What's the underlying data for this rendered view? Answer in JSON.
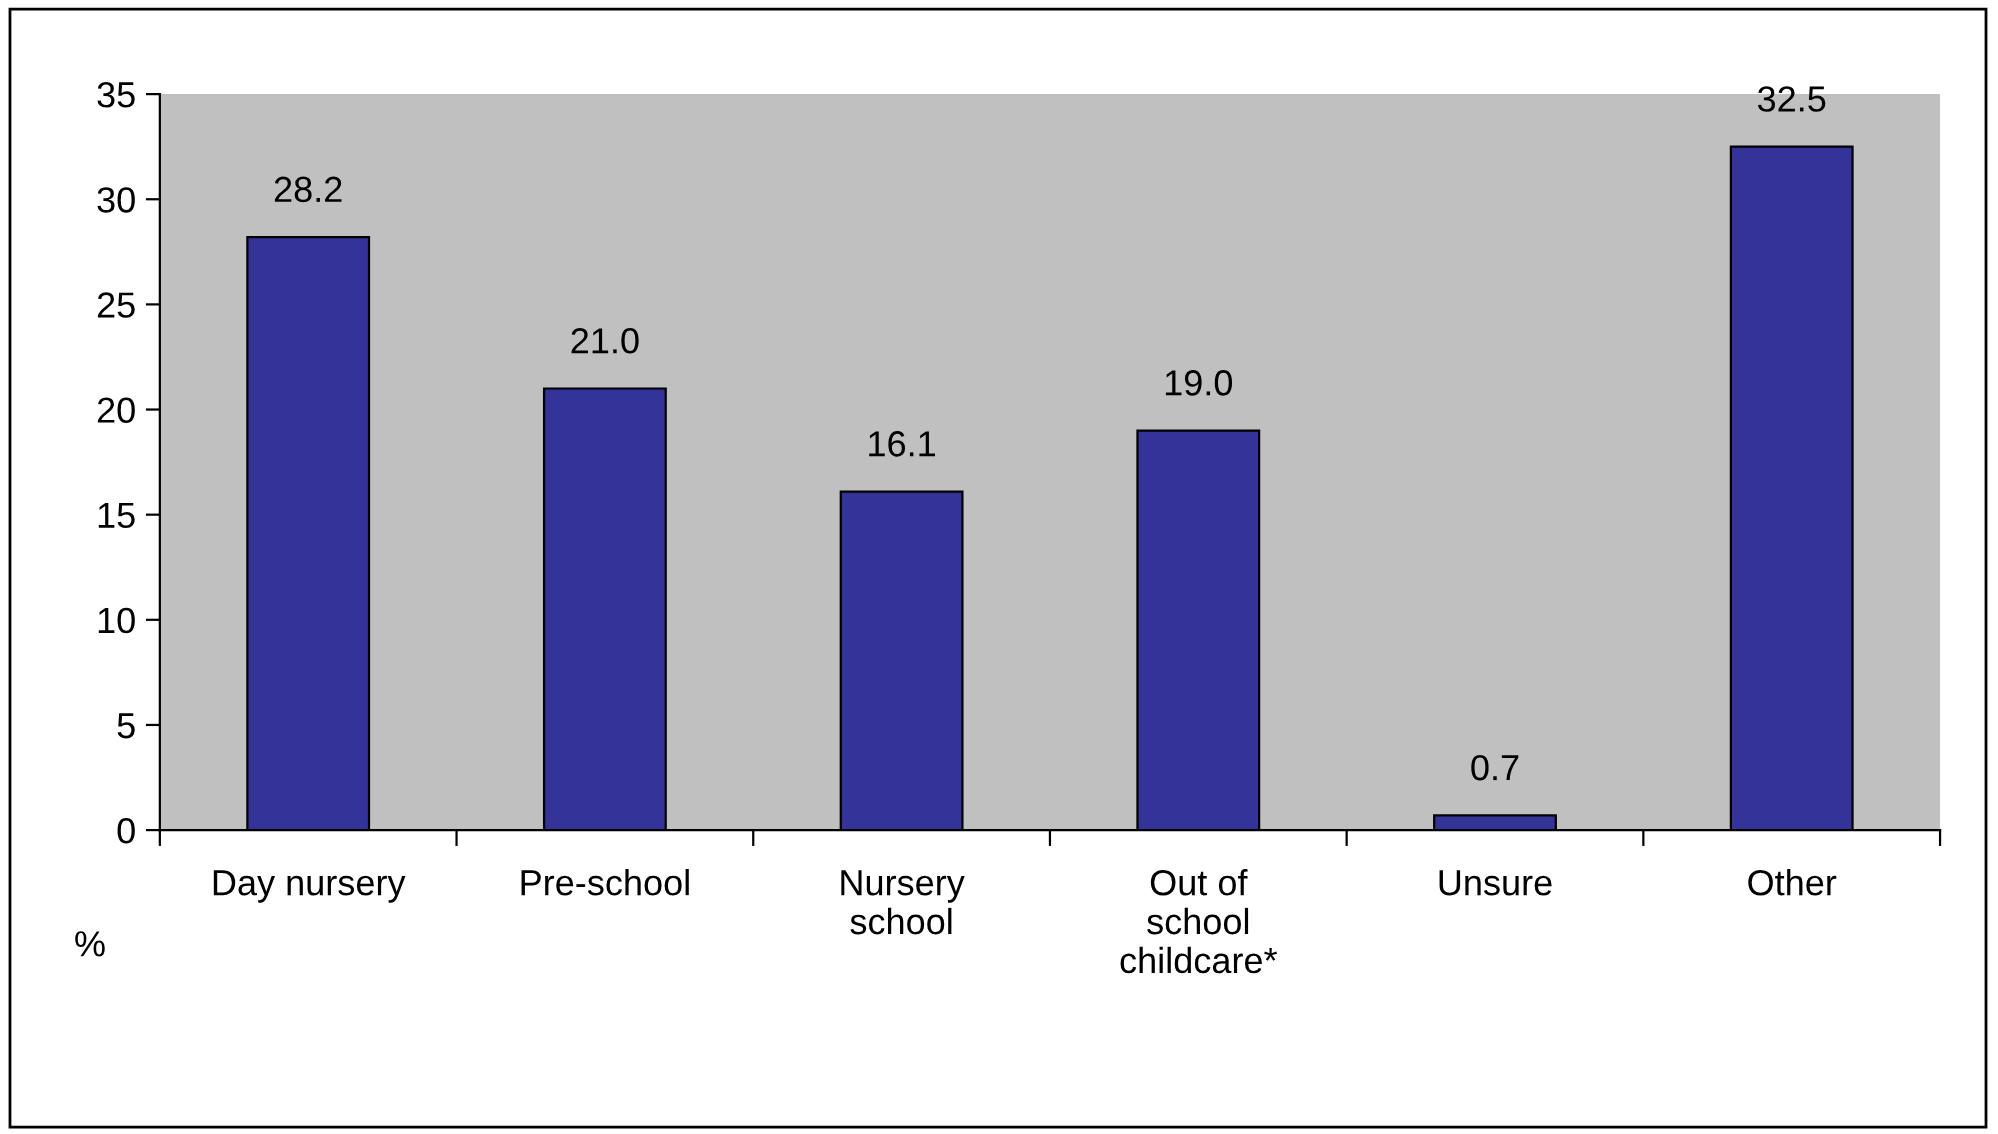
{
  "chart_data": {
    "type": "bar",
    "ylabel": "%",
    "categories": [
      "Day nursery",
      "Pre-school",
      "Nursery school",
      "Out of school childcare*",
      "Unsure",
      "Other"
    ],
    "values": [
      28.2,
      21.0,
      16.1,
      19.0,
      0.7,
      32.5
    ],
    "value_labels": [
      "28.2",
      "21.0",
      "16.1",
      "19.0",
      "0.7",
      "32.5"
    ],
    "color": "#333399",
    "ylim": [
      0,
      35
    ],
    "yticks": [
      0,
      5,
      10,
      15,
      20,
      25,
      30,
      35
    ],
    "grid": false
  }
}
